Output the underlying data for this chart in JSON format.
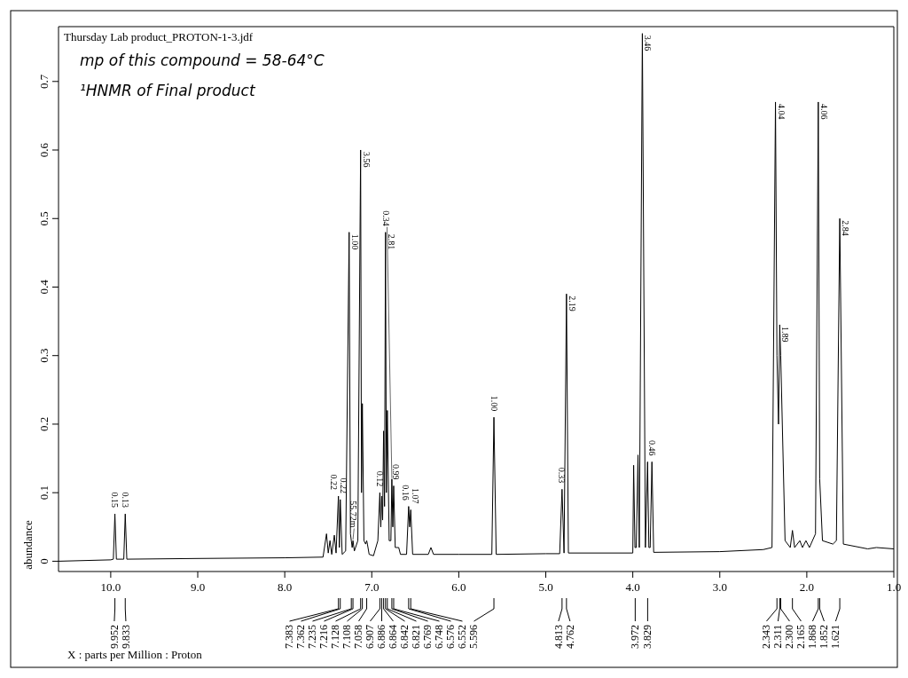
{
  "chart_data": {
    "type": "line",
    "title": "Thursday Lab product_PROTON-1-3.jdf",
    "xlabel": "X : parts per Million : Proton",
    "ylabel": "abundance",
    "xlim": [
      10.6,
      1.0
    ],
    "ylim": [
      -0.015,
      0.78
    ],
    "xticks": [
      {
        "value": 10,
        "label": "10.0"
      },
      {
        "value": 9,
        "label": "9.0"
      },
      {
        "value": 8,
        "label": "8.0"
      },
      {
        "value": 7,
        "label": "7.0"
      },
      {
        "value": 6,
        "label": "6.0"
      },
      {
        "value": 5,
        "label": "5.0"
      },
      {
        "value": 4,
        "label": "4.0"
      },
      {
        "value": 3,
        "label": "3.0"
      },
      {
        "value": 2,
        "label": "2.0"
      },
      {
        "value": 1,
        "label": "1.0"
      }
    ],
    "yticks": [
      0,
      0.1,
      0.2,
      0.3,
      0.4,
      0.5,
      0.6,
      0.7
    ],
    "grid": false,
    "marker": "none",
    "line_style": "solid",
    "series": [
      {
        "color": "#000000",
        "x": [
          10.6,
          10.0,
          9.97,
          9.952,
          9.935,
          9.85,
          9.833,
          9.815,
          9.0,
          8.0,
          7.56,
          7.52,
          7.5,
          7.48,
          7.46,
          7.43,
          7.41,
          7.383,
          7.372,
          7.362,
          7.34,
          7.3,
          7.26,
          7.245,
          7.235,
          7.225,
          7.216,
          7.2,
          7.16,
          7.128,
          7.118,
          7.108,
          7.09,
          7.07,
          7.058,
          7.05,
          7.03,
          6.98,
          6.93,
          6.907,
          6.896,
          6.886,
          6.875,
          6.864,
          6.853,
          6.842,
          6.832,
          6.821,
          6.8,
          6.78,
          6.769,
          6.758,
          6.748,
          6.73,
          6.71,
          6.69,
          6.67,
          6.6,
          6.576,
          6.564,
          6.552,
          6.53,
          6.35,
          6.32,
          6.29,
          6.0,
          5.62,
          5.596,
          5.57,
          5.0,
          4.84,
          4.813,
          4.79,
          4.762,
          4.74,
          4.0,
          3.99,
          3.975,
          3.96,
          3.94,
          3.925,
          3.89,
          3.855,
          3.83,
          3.815,
          3.8,
          3.78,
          3.76,
          3.0,
          2.5,
          2.4,
          2.36,
          2.343,
          2.325,
          2.311,
          2.3,
          2.25,
          2.19,
          2.165,
          2.14,
          2.08,
          2.05,
          2.01,
          1.97,
          1.9,
          1.868,
          1.852,
          1.82,
          1.7,
          1.66,
          1.621,
          1.58,
          1.3,
          1.2,
          1.0
        ],
        "values": [
          0.0,
          0.002,
          0.003,
          0.069,
          0.003,
          0.003,
          0.069,
          0.003,
          0.004,
          0.005,
          0.006,
          0.04,
          0.012,
          0.03,
          0.01,
          0.038,
          0.012,
          0.095,
          0.02,
          0.09,
          0.01,
          0.015,
          0.48,
          0.04,
          0.03,
          0.02,
          0.03,
          0.015,
          0.03,
          0.6,
          0.1,
          0.23,
          0.03,
          0.025,
          0.03,
          0.025,
          0.01,
          0.008,
          0.03,
          0.1,
          0.05,
          0.095,
          0.06,
          0.19,
          0.08,
          0.48,
          0.1,
          0.22,
          0.03,
          0.03,
          0.12,
          0.05,
          0.11,
          0.02,
          0.02,
          0.02,
          0.01,
          0.01,
          0.08,
          0.05,
          0.075,
          0.01,
          0.01,
          0.02,
          0.01,
          0.01,
          0.01,
          0.21,
          0.01,
          0.011,
          0.011,
          0.105,
          0.012,
          0.39,
          0.012,
          0.012,
          0.14,
          0.02,
          0.02,
          0.155,
          0.02,
          0.77,
          0.02,
          0.145,
          0.02,
          0.02,
          0.145,
          0.013,
          0.014,
          0.017,
          0.02,
          0.67,
          0.3,
          0.2,
          0.345,
          0.3,
          0.03,
          0.02,
          0.045,
          0.02,
          0.03,
          0.02,
          0.03,
          0.02,
          0.04,
          0.67,
          0.12,
          0.03,
          0.025,
          0.03,
          0.5,
          0.025,
          0.018,
          0.02,
          0.018
        ]
      }
    ],
    "annotations": [
      "mp of this compound = 58-64°C",
      "¹HNMR of Final product",
      {
        "text": "0.15",
        "x": 9.952,
        "y": 0.069
      },
      {
        "text": "0.13",
        "x": 9.833,
        "y": 0.069
      },
      {
        "text": "0.22",
        "x": 7.383,
        "y": 0.095
      },
      {
        "text": "0.22",
        "x": 7.362,
        "y": 0.09
      },
      {
        "text": "1.00",
        "x": 7.26,
        "y": 0.48
      },
      {
        "text": "55.72m",
        "x": 7.216,
        "y": 0.03
      },
      {
        "text": "3.56",
        "x": 7.128,
        "y": 0.6
      },
      {
        "text": "0.12",
        "x": 6.907,
        "y": 0.1
      },
      {
        "text": "2.81",
        "x": 6.842,
        "y": 0.48
      },
      {
        "text": "0.34",
        "x": 6.769,
        "y": 0.12
      },
      {
        "text": "0.99",
        "x": 6.748,
        "y": 0.11
      },
      {
        "text": "0.16",
        "x": 6.576,
        "y": 0.08
      },
      {
        "text": "1.07",
        "x": 6.552,
        "y": 0.075
      },
      {
        "text": "1.00",
        "x": 5.596,
        "y": 0.21
      },
      {
        "text": "0.33",
        "x": 4.813,
        "y": 0.105
      },
      {
        "text": "2.19",
        "x": 4.762,
        "y": 0.39
      },
      {
        "text": "0.46",
        "x": 3.78,
        "y": 0.145
      },
      {
        "text": "3.46",
        "x": 3.89,
        "y": 0.77
      },
      {
        "text": "4.04",
        "x": 2.36,
        "y": 0.67
      },
      {
        "text": "1.89",
        "x": 2.311,
        "y": 0.345
      },
      {
        "text": "4.06",
        "x": 1.868,
        "y": 0.67
      },
      {
        "text": "2.84",
        "x": 1.621,
        "y": 0.5
      },
      {
        "text": "9.952",
        "x": 9.952
      },
      {
        "text": "9.833",
        "x": 9.833
      },
      {
        "text": "7.383",
        "x": 7.383
      },
      {
        "text": "7.362",
        "x": 7.362
      },
      {
        "text": "7.235",
        "x": 7.235
      },
      {
        "text": "7.216",
        "x": 7.216
      },
      {
        "text": "7.128",
        "x": 7.128
      },
      {
        "text": "7.108",
        "x": 7.108
      },
      {
        "text": "7.058",
        "x": 7.058
      },
      {
        "text": "6.907",
        "x": 6.907
      },
      {
        "text": "6.886",
        "x": 6.886
      },
      {
        "text": "6.864",
        "x": 6.864
      },
      {
        "text": "6.842",
        "x": 6.842
      },
      {
        "text": "6.821",
        "x": 6.821
      },
      {
        "text": "6.769",
        "x": 6.769
      },
      {
        "text": "6.748",
        "x": 6.748
      },
      {
        "text": "6.576",
        "x": 6.576
      },
      {
        "text": "6.552",
        "x": 6.552
      },
      {
        "text": "5.596",
        "x": 5.596
      },
      {
        "text": "4.813",
        "x": 4.813
      },
      {
        "text": "4.762",
        "x": 4.762
      },
      {
        "text": "3.972",
        "x": 3.972
      },
      {
        "text": "3.829",
        "x": 3.829
      },
      {
        "text": "2.343",
        "x": 2.343
      },
      {
        "text": "2.311",
        "x": 2.311
      },
      {
        "text": "2.300",
        "x": 2.3
      },
      {
        "text": "2.165",
        "x": 2.165
      },
      {
        "text": "1.868",
        "x": 1.868
      },
      {
        "text": "1.852",
        "x": 1.852
      },
      {
        "text": "1.621",
        "x": 1.621
      }
    ]
  }
}
